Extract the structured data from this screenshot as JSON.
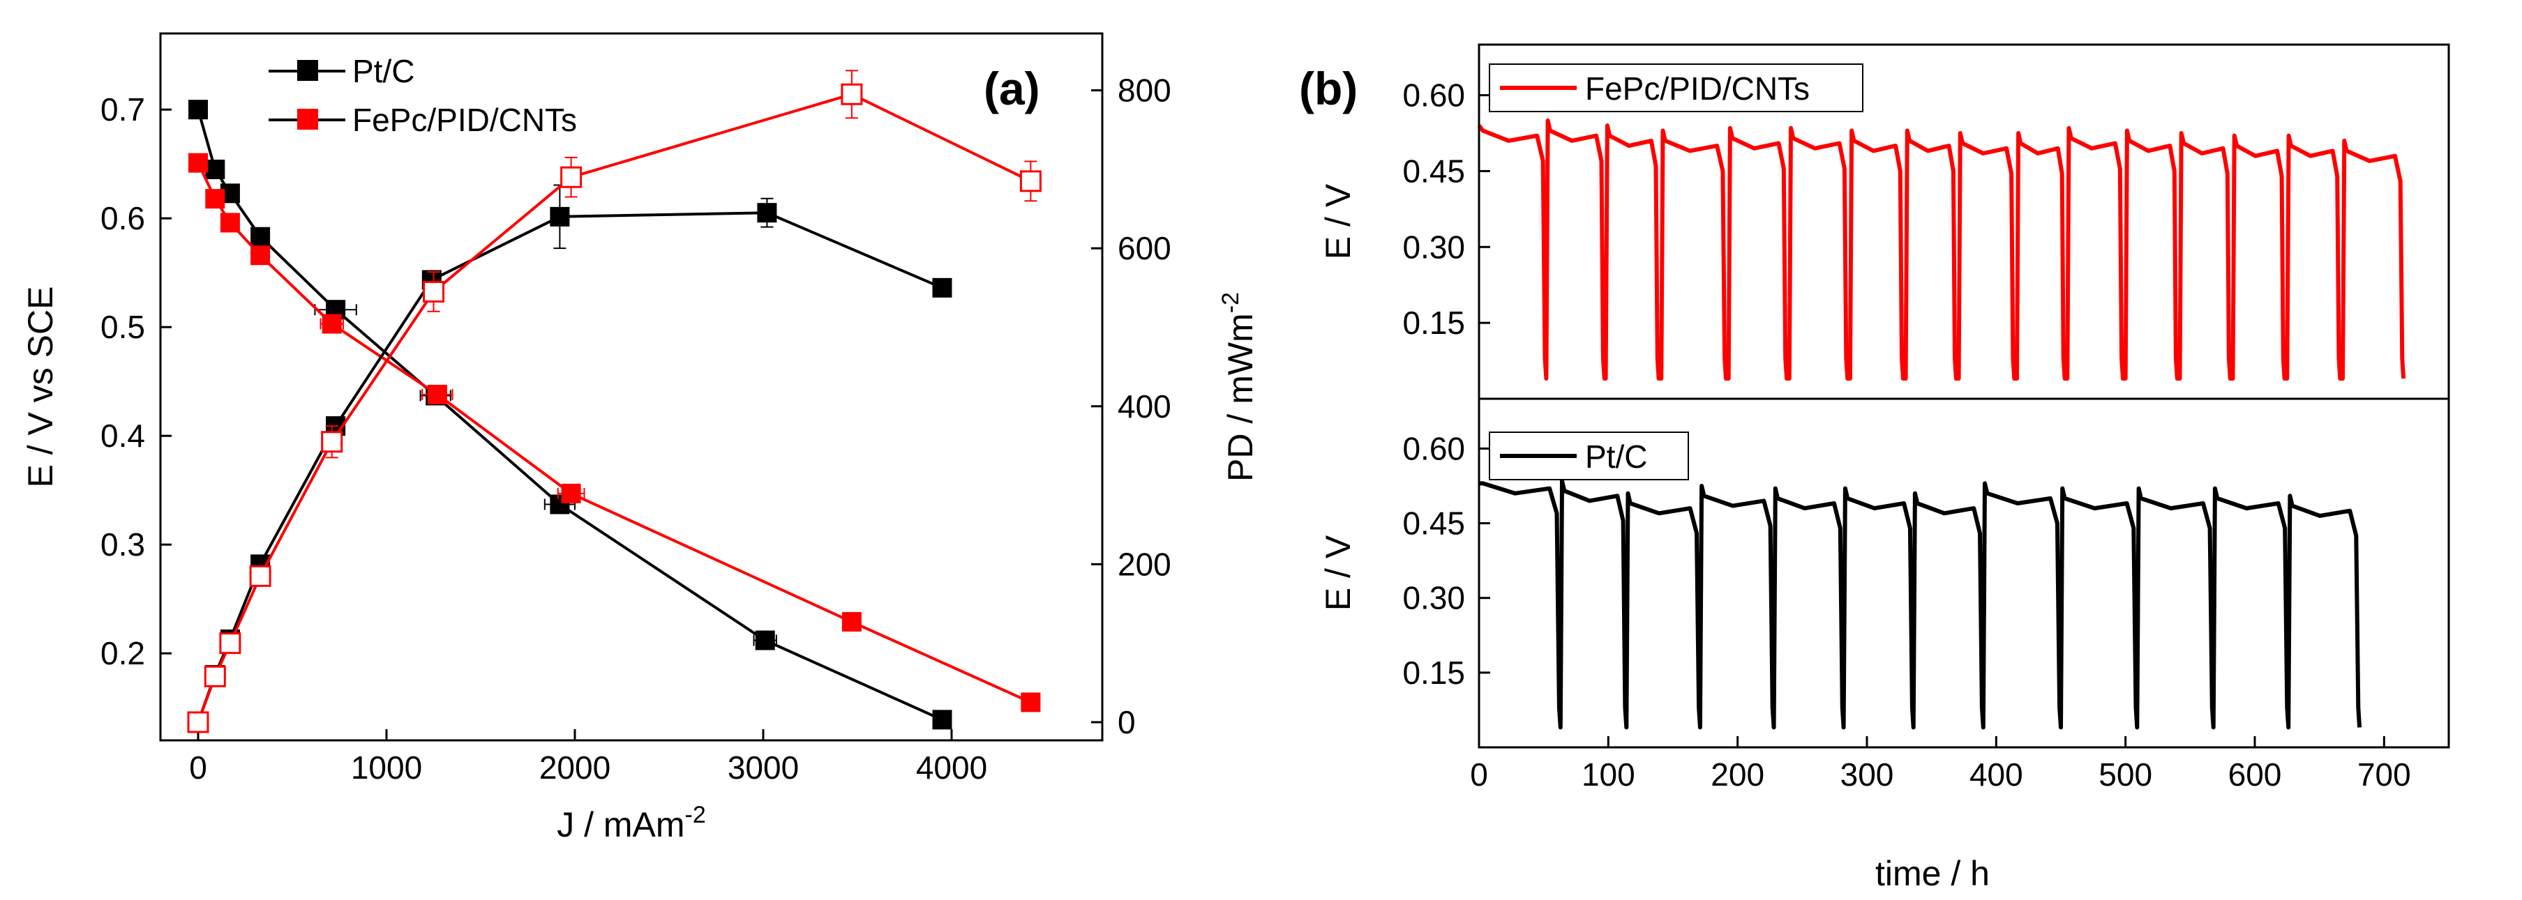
{
  "colors": {
    "black": "#000000",
    "red": "#ff0000"
  },
  "chart_data": [
    {
      "panel": "(a)",
      "type": "line",
      "title": "",
      "xlabel": "J / mAm",
      "xlabel_sup": "-2",
      "ylabel": "E / V vs SCE",
      "y2label": "PD / mWm",
      "y2label_sup": "-2",
      "xlim": [
        -200,
        4800
      ],
      "ylim": [
        0.12,
        0.77
      ],
      "y2lim": [
        -23,
        872
      ],
      "xticks": [
        0,
        1000,
        2000,
        3000,
        4000
      ],
      "yticks": [
        0.2,
        0.3,
        0.4,
        0.5,
        0.6,
        0.7
      ],
      "y2ticks": [
        0,
        200,
        400,
        600,
        800
      ],
      "legend_position": "top-left",
      "series": [
        {
          "name": "Pt/C",
          "color": "#000000",
          "axis": "left",
          "marker": "filled-square",
          "x": [
            0,
            90,
            170,
            330,
            730,
            1260,
            1920,
            3010,
            3950
          ],
          "y": [
            0.7,
            0.645,
            0.623,
            0.583,
            0.516,
            0.437,
            0.337,
            0.212,
            0.139
          ],
          "xerr": [
            0,
            0,
            0,
            0,
            110,
            80,
            80,
            60,
            0
          ]
        },
        {
          "name": "FePc/PID/CNTs",
          "color": "#ff0000",
          "axis": "left",
          "marker": "filled-square",
          "x": [
            0,
            90,
            170,
            330,
            710,
            1270,
            1980,
            3470,
            4420
          ],
          "y": [
            0.651,
            0.618,
            0.596,
            0.566,
            0.503,
            0.438,
            0.347,
            0.229,
            0.155
          ],
          "xerr": [
            0,
            0,
            0,
            0,
            60,
            80,
            70,
            0,
            0
          ]
        },
        {
          "name": "Pt/C power density",
          "color": "#000000",
          "axis": "right",
          "marker": "filled-square",
          "x": [
            0,
            90,
            170,
            330,
            730,
            1240,
            1920,
            3020,
            3950
          ],
          "y": [
            0,
            60,
            105,
            200,
            375,
            560,
            640,
            645,
            550
          ],
          "yerr": [
            0,
            0,
            0,
            0,
            0,
            0,
            40,
            18,
            0
          ]
        },
        {
          "name": "FePc/PID/CNTs power density",
          "color": "#ff0000",
          "axis": "right",
          "marker": "open-square",
          "x": [
            0,
            90,
            170,
            330,
            710,
            1250,
            1980,
            3470,
            4420
          ],
          "y": [
            0,
            58,
            100,
            185,
            355,
            545,
            690,
            795,
            685
          ],
          "yerr": [
            0,
            0,
            0,
            0,
            20,
            25,
            25,
            30,
            25
          ]
        }
      ]
    },
    {
      "panel": "(b)",
      "type": "line",
      "title": "",
      "xlabel": "time / h",
      "xlim": [
        0,
        750
      ],
      "xticks": [
        0,
        100,
        200,
        300,
        400,
        500,
        600,
        700
      ],
      "subplots": [
        {
          "name": "FePc/PID/CNTs",
          "color": "#ff0000",
          "ylabel": "E / V",
          "ylim": [
            0.0,
            0.7
          ],
          "yticks": [
            0.15,
            0.3,
            0.45,
            0.6
          ],
          "legend_position": "top-left",
          "start_voltage": 0.54,
          "cycles": [
            {
              "start": 0,
              "end": 51,
              "plateau": 0.52
            },
            {
              "start": 52,
              "end": 96,
              "plateau": 0.52
            },
            {
              "start": 98,
              "end": 138,
              "plateau": 0.51
            },
            {
              "start": 141,
              "end": 190,
              "plateau": 0.5
            },
            {
              "start": 193,
              "end": 237,
              "plateau": 0.505
            },
            {
              "start": 240,
              "end": 284,
              "plateau": 0.505
            },
            {
              "start": 287,
              "end": 327,
              "plateau": 0.5
            },
            {
              "start": 330,
              "end": 368,
              "plateau": 0.5
            },
            {
              "start": 371,
              "end": 413,
              "plateau": 0.495
            },
            {
              "start": 416,
              "end": 452,
              "plateau": 0.495
            },
            {
              "start": 455,
              "end": 497,
              "plateau": 0.505
            },
            {
              "start": 500,
              "end": 539,
              "plateau": 0.5
            },
            {
              "start": 542,
              "end": 580,
              "plateau": 0.495
            },
            {
              "start": 583,
              "end": 622,
              "plateau": 0.49
            },
            {
              "start": 625,
              "end": 665,
              "plateau": 0.49
            },
            {
              "start": 668,
              "end": 714,
              "plateau": 0.48
            }
          ]
        },
        {
          "name": "Pt/C",
          "color": "#000000",
          "ylabel": "E / V",
          "ylim": [
            0.0,
            0.7
          ],
          "yticks": [
            0.15,
            0.3,
            0.45,
            0.6
          ],
          "legend_position": "top-left",
          "start_voltage": 0.53,
          "cycles": [
            {
              "start": 0,
              "end": 62,
              "plateau": 0.52
            },
            {
              "start": 63,
              "end": 113,
              "plateau": 0.505
            },
            {
              "start": 114,
              "end": 170,
              "plateau": 0.48
            },
            {
              "start": 171,
              "end": 227,
              "plateau": 0.495
            },
            {
              "start": 228,
              "end": 281,
              "plateau": 0.49
            },
            {
              "start": 282,
              "end": 335,
              "plateau": 0.49
            },
            {
              "start": 336,
              "end": 389,
              "plateau": 0.48
            },
            {
              "start": 390,
              "end": 449,
              "plateau": 0.5
            },
            {
              "start": 450,
              "end": 508,
              "plateau": 0.49
            },
            {
              "start": 509,
              "end": 567,
              "plateau": 0.49
            },
            {
              "start": 568,
              "end": 625,
              "plateau": 0.49
            },
            {
              "start": 626,
              "end": 680,
              "plateau": 0.475
            }
          ]
        }
      ]
    }
  ]
}
